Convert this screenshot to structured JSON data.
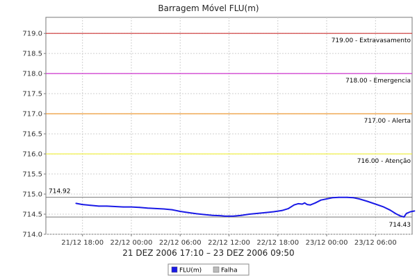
{
  "chart_data": {
    "type": "line",
    "title": "Barragem Móvel FLU(m)",
    "subtitle": "21 DEZ 2006 17:10 – 23 DEZ 2006 09:50",
    "ylim": [
      714.0,
      719.4
    ],
    "yticks": [
      "714.0",
      "714.5",
      "715.0",
      "715.5",
      "716.0",
      "716.5",
      "717.0",
      "717.5",
      "718.0",
      "718.5",
      "719.0"
    ],
    "xlim_hours": [
      -4.5,
      40.5
    ],
    "xticks": [
      {
        "hour": 0,
        "label": "21/12 18:00"
      },
      {
        "hour": 6,
        "label": "22/12 00:00"
      },
      {
        "hour": 12,
        "label": "22/12 06:00"
      },
      {
        "hour": 18,
        "label": "22/12 12:00"
      },
      {
        "hour": 24,
        "label": "22/12 18:00"
      },
      {
        "hour": 30,
        "label": "23/12 00:00"
      },
      {
        "hour": 36,
        "label": "23/12 06:00"
      }
    ],
    "grid": true,
    "thresholds": [
      {
        "value": 719.0,
        "label": "719.00 - Extravasamento",
        "color": "#cc3333"
      },
      {
        "value": 718.0,
        "label": "718.00 - Emergencia",
        "color": "#cc33cc"
      },
      {
        "value": 717.0,
        "label": "717.00 - Alerta",
        "color": "#ee9933"
      },
      {
        "value": 716.0,
        "label": "716.00 - Atenção",
        "color": "#eeee33"
      }
    ],
    "max_line": {
      "value": 714.92,
      "label": "714.92",
      "color": "#777777"
    },
    "min_line": {
      "value": 714.43,
      "label": "714.43",
      "color": "#777777"
    },
    "series": [
      {
        "name": "FLU(m)",
        "color": "#1a1ae6",
        "points": [
          [
            -0.8,
            714.77
          ],
          [
            0.0,
            714.74
          ],
          [
            1.0,
            714.72
          ],
          [
            2.0,
            714.7
          ],
          [
            3.0,
            714.7
          ],
          [
            4.0,
            714.69
          ],
          [
            5.0,
            714.68
          ],
          [
            6.0,
            714.68
          ],
          [
            7.0,
            714.67
          ],
          [
            8.0,
            714.65
          ],
          [
            9.0,
            714.64
          ],
          [
            10.0,
            714.63
          ],
          [
            11.0,
            714.61
          ],
          [
            12.0,
            714.57
          ],
          [
            13.0,
            714.54
          ],
          [
            14.0,
            714.51
          ],
          [
            15.0,
            714.49
          ],
          [
            16.0,
            714.47
          ],
          [
            17.0,
            714.46
          ],
          [
            17.5,
            714.45
          ],
          [
            18.5,
            714.45
          ],
          [
            19.5,
            714.47
          ],
          [
            20.5,
            714.5
          ],
          [
            21.5,
            714.52
          ],
          [
            22.5,
            714.54
          ],
          [
            23.5,
            714.56
          ],
          [
            24.5,
            714.59
          ],
          [
            25.3,
            714.64
          ],
          [
            26.0,
            714.73
          ],
          [
            26.5,
            714.76
          ],
          [
            27.0,
            714.75
          ],
          [
            27.3,
            714.78
          ],
          [
            27.6,
            714.74
          ],
          [
            28.0,
            714.73
          ],
          [
            28.6,
            714.78
          ],
          [
            29.3,
            714.85
          ],
          [
            30.0,
            714.88
          ],
          [
            30.7,
            714.91
          ],
          [
            31.5,
            714.92
          ],
          [
            32.5,
            714.92
          ],
          [
            33.3,
            714.91
          ],
          [
            34.0,
            714.88
          ],
          [
            35.0,
            714.82
          ],
          [
            36.0,
            714.75
          ],
          [
            37.0,
            714.68
          ],
          [
            37.8,
            714.6
          ],
          [
            38.5,
            714.51
          ],
          [
            39.0,
            714.46
          ],
          [
            39.5,
            714.43
          ],
          [
            39.8,
            714.52
          ],
          [
            40.3,
            714.56
          ],
          [
            40.8,
            714.58
          ]
        ]
      }
    ],
    "legend": {
      "position": "bottom-center",
      "items": [
        {
          "label": "FLU(m)",
          "color": "#1a1ae6"
        },
        {
          "label": "Falha",
          "color": "#bbbbbb"
        }
      ]
    }
  }
}
